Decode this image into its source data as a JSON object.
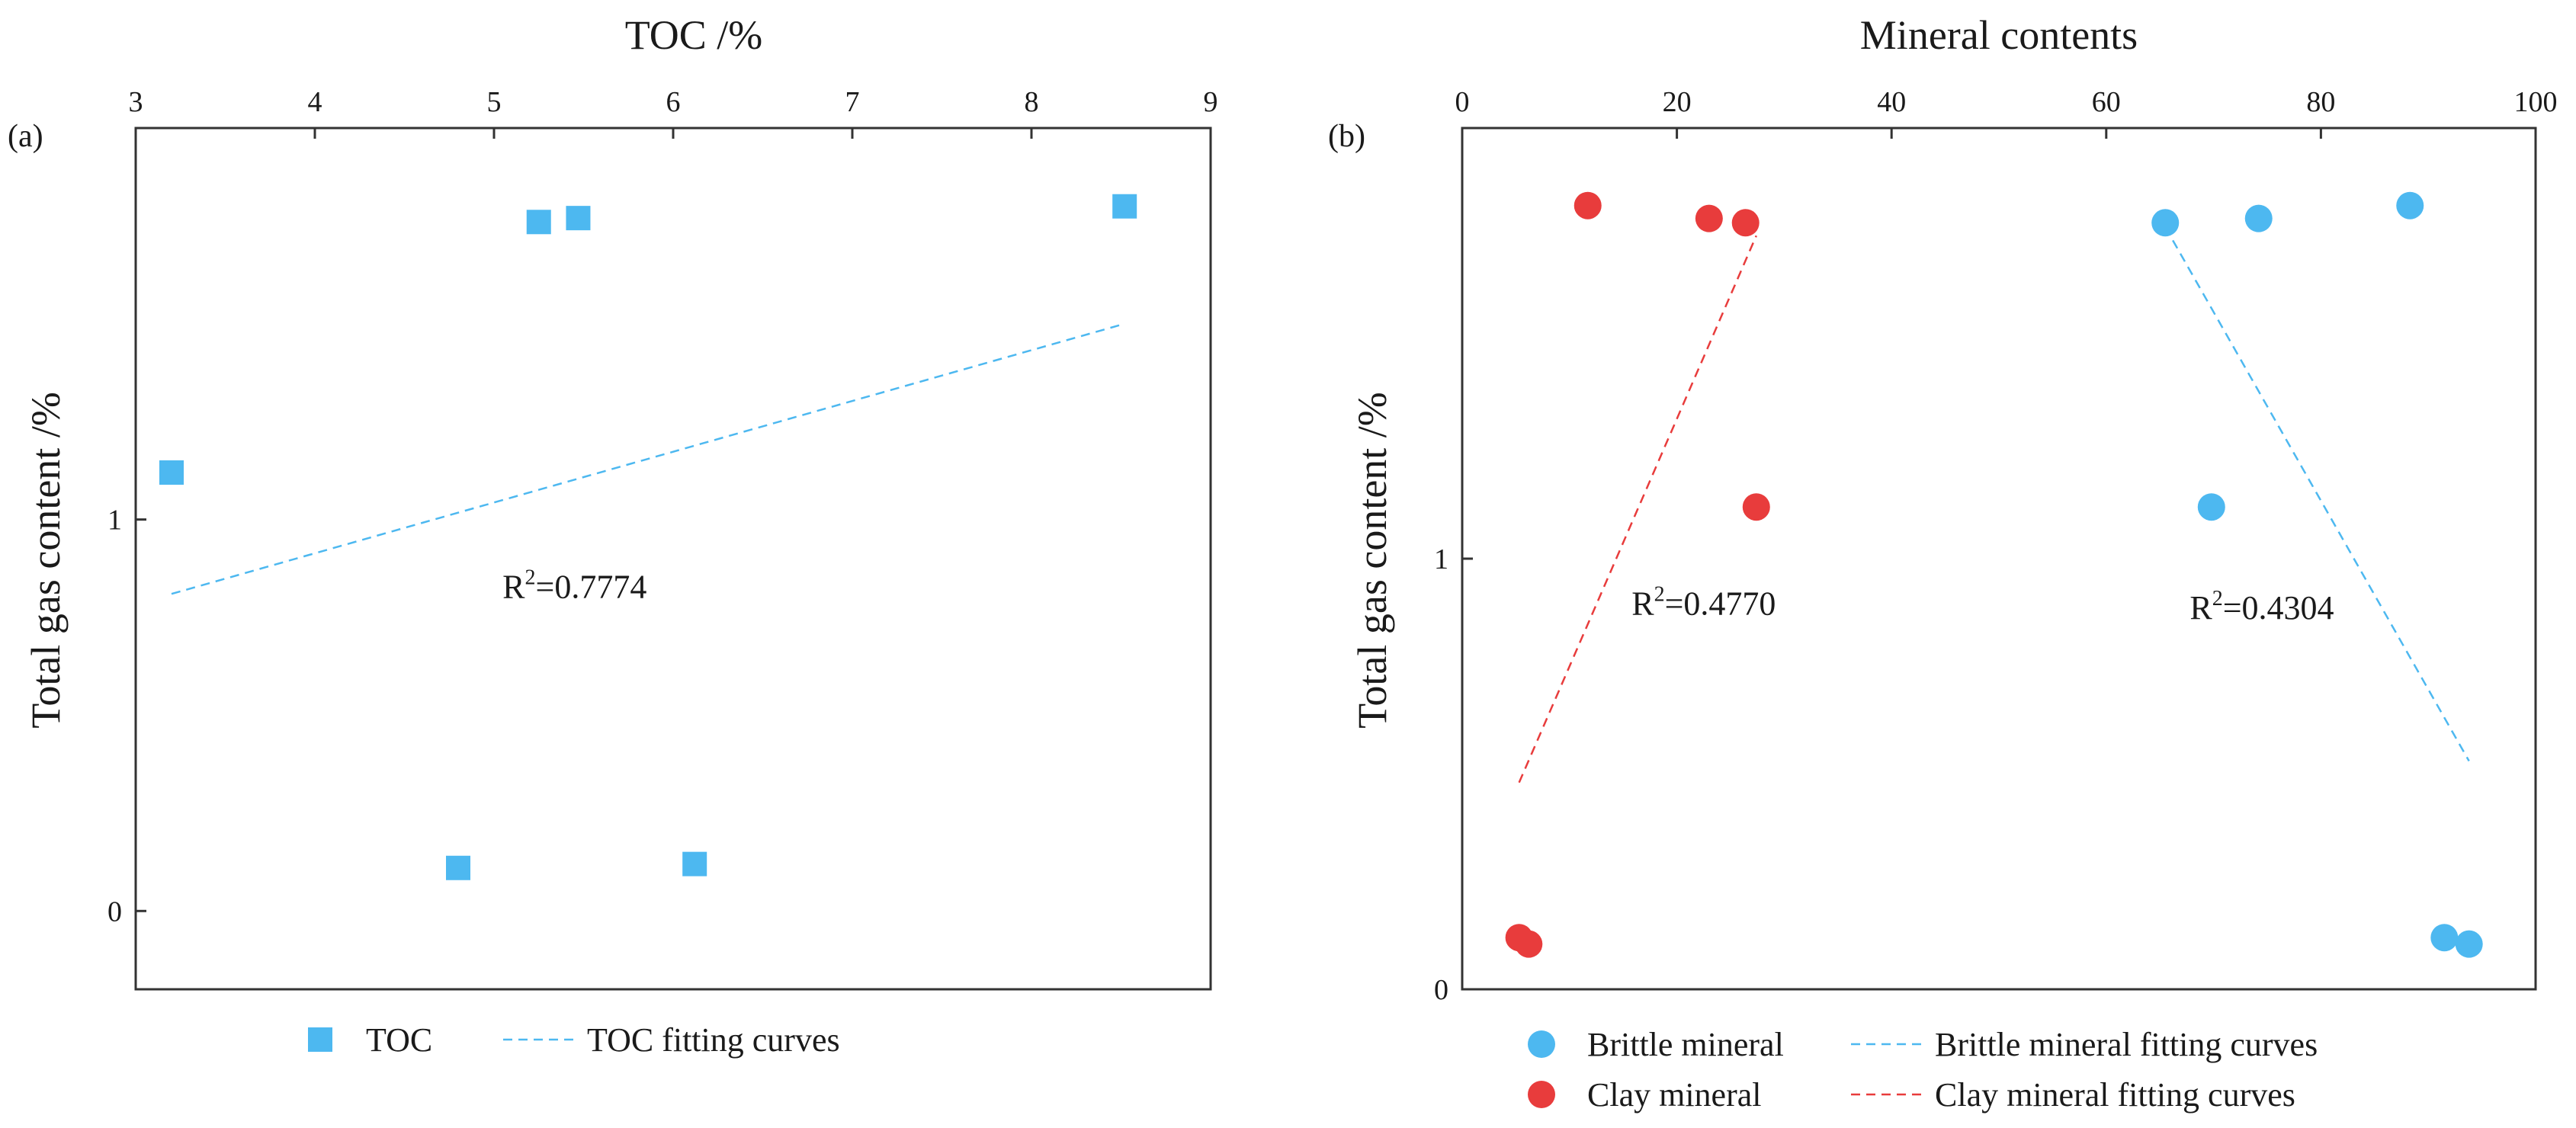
{
  "colors": {
    "blue": "#4db8f0",
    "red": "#e83c3c",
    "axis": "#333333"
  },
  "chart_data": [
    {
      "type": "scatter",
      "panel_label": "(a)",
      "title": "TOC /%",
      "xlabel": "TOC /%",
      "ylabel": "Total gas content /%",
      "x_axis_position": "top",
      "xlim": [
        3,
        9
      ],
      "ylim": [
        -0.2,
        2.0
      ],
      "xticks": [
        3,
        4,
        5,
        6,
        7,
        8,
        9
      ],
      "yticks": [
        0,
        1
      ],
      "series": [
        {
          "name": "TOC",
          "marker": "square",
          "color": "#4db8f0",
          "points": [
            [
              3.2,
              1.12
            ],
            [
              4.8,
              0.11
            ],
            [
              5.25,
              1.76
            ],
            [
              5.47,
              1.77
            ],
            [
              6.12,
              0.12
            ],
            [
              8.52,
              1.8
            ]
          ]
        }
      ],
      "fits": [
        {
          "name": "TOC fitting curves",
          "color": "#4db8f0",
          "points": [
            [
              3.2,
              0.81
            ],
            [
              8.52,
              1.5
            ]
          ]
        }
      ],
      "annotation": {
        "text": "R",
        "sup": "2",
        "rest": "=0.7774",
        "x": 5.45,
        "y": 0.8
      },
      "legend": [
        {
          "label": "TOC",
          "kind": "square",
          "color": "#4db8f0"
        },
        {
          "label": "TOC fitting curves",
          "kind": "dash",
          "color": "#4db8f0"
        }
      ],
      "legend_placement": "bottom"
    },
    {
      "type": "scatter",
      "panel_label": "(b)",
      "title": "Mineral contents",
      "xlabel": "Mineral contents",
      "ylabel": "Total gas content /%",
      "x_axis_position": "top",
      "xlim": [
        0,
        100
      ],
      "ylim": [
        0,
        2.0
      ],
      "xticks": [
        0,
        20,
        40,
        60,
        80,
        100
      ],
      "yticks": [
        0,
        1
      ],
      "series": [
        {
          "name": "Brittle mineral",
          "marker": "circle",
          "color": "#4db8f0",
          "points": [
            [
              65.5,
              1.78
            ],
            [
              69.8,
              1.12
            ],
            [
              74.2,
              1.79
            ],
            [
              88.3,
              1.82
            ],
            [
              91.5,
              0.12
            ],
            [
              93.8,
              0.105
            ]
          ]
        },
        {
          "name": "Clay mineral",
          "marker": "circle",
          "color": "#e83c3c",
          "points": [
            [
              5.3,
              0.12
            ],
            [
              6.2,
              0.105
            ],
            [
              11.7,
              1.82
            ],
            [
              23.0,
              1.79
            ],
            [
              26.4,
              1.78
            ],
            [
              27.4,
              1.12
            ]
          ]
        }
      ],
      "fits": [
        {
          "name": "Brittle mineral fitting curves",
          "color": "#4db8f0",
          "points": [
            [
              65.5,
              1.77
            ],
            [
              93.8,
              0.53
            ]
          ]
        },
        {
          "name": "Clay mineral fitting curves",
          "color": "#e83c3c",
          "points": [
            [
              5.3,
              0.48
            ],
            [
              27.4,
              1.75
            ]
          ]
        }
      ],
      "annotations": [
        {
          "text": "R",
          "sup": "2",
          "rest": "=0.4770",
          "x": 22.5,
          "y": 0.87
        },
        {
          "text": "R",
          "sup": "2",
          "rest": "=0.4304",
          "x": 74.5,
          "y": 0.86
        }
      ],
      "legend": [
        {
          "label": "Brittle mineral",
          "kind": "circle",
          "color": "#4db8f0"
        },
        {
          "label": "Brittle mineral fitting curves",
          "kind": "dash",
          "color": "#4db8f0"
        },
        {
          "label": "Clay mineral",
          "kind": "circle",
          "color": "#e83c3c"
        },
        {
          "label": "Clay mineral fitting curves",
          "kind": "dash",
          "color": "#e83c3c"
        }
      ],
      "legend_placement": "bottom"
    }
  ]
}
